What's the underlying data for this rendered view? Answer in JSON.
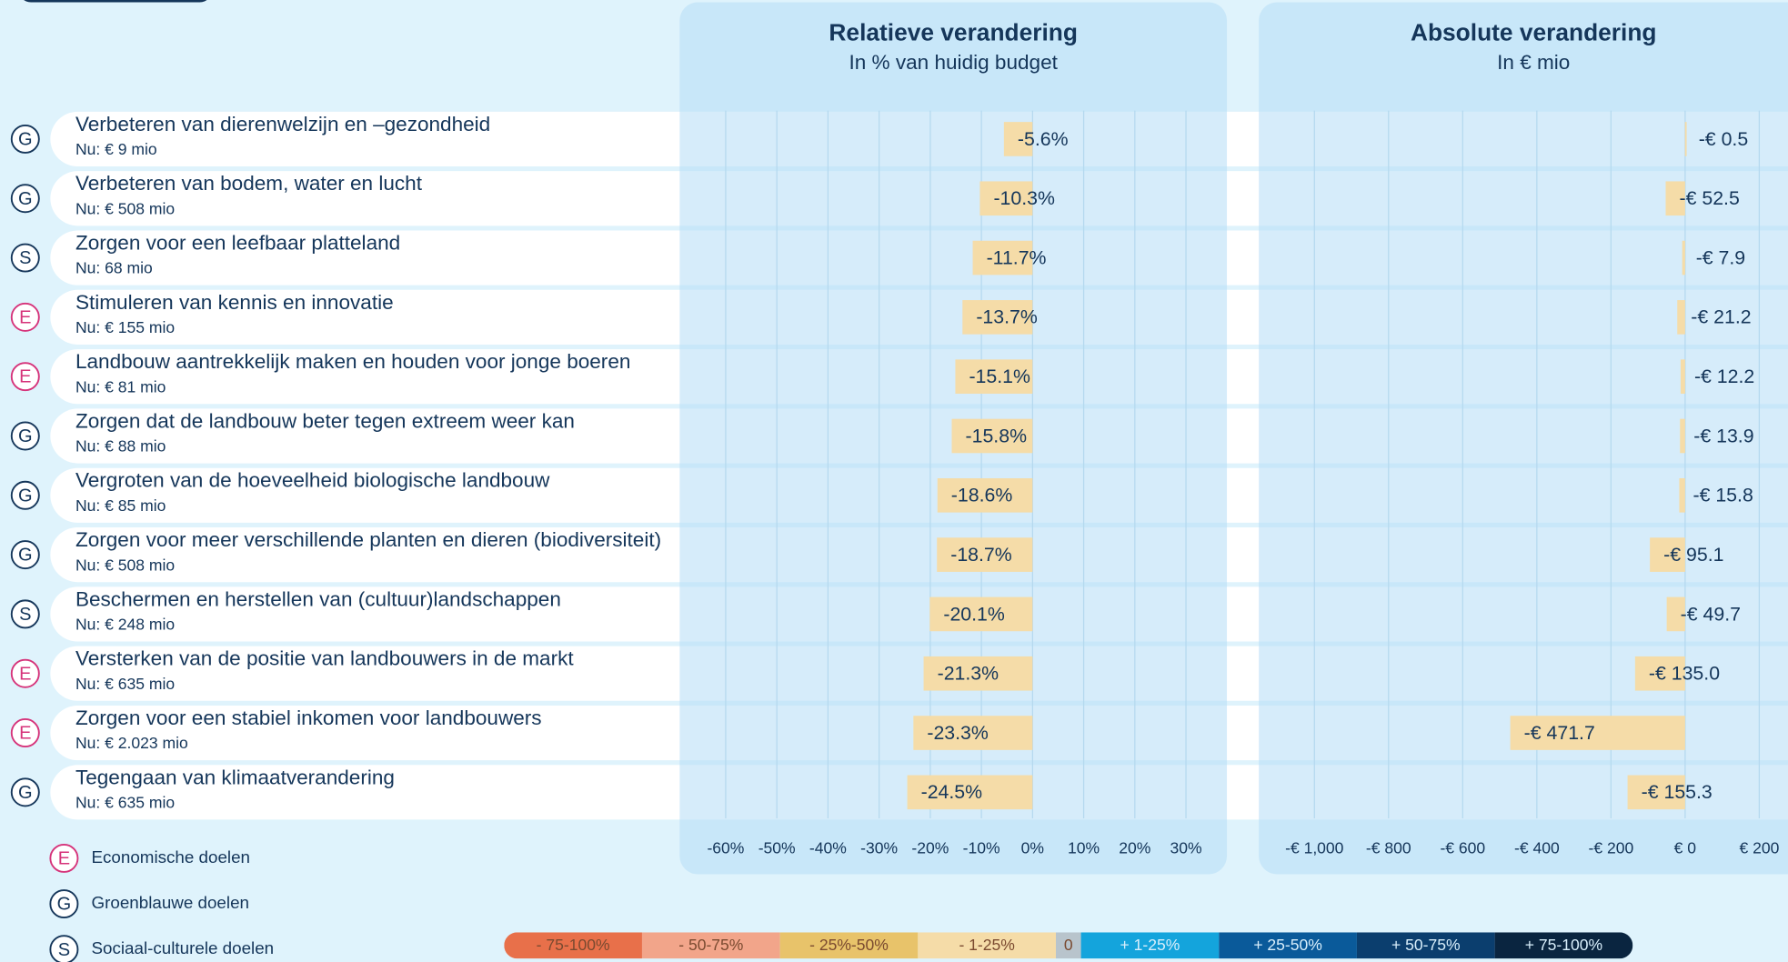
{
  "rows": [
    {
      "icon": "G",
      "label": "Verbeteren van dierenwelzijn en –gezondheid",
      "sub": "Nu: € 9 mio"
    },
    {
      "icon": "G",
      "label": "Verbeteren van bodem, water en lucht",
      "sub": "Nu: € 508 mio"
    },
    {
      "icon": "S",
      "label": "Zorgen voor een leefbaar platteland",
      "sub": "Nu: 68 mio"
    },
    {
      "icon": "E",
      "label": "Stimuleren van kennis en innovatie",
      "sub": "Nu: € 155 mio"
    },
    {
      "icon": "E",
      "label": "Landbouw aantrekkelijk maken en houden voor jonge boeren",
      "sub": "Nu: € 81 mio"
    },
    {
      "icon": "G",
      "label": "Zorgen dat de landbouw beter tegen extreem weer kan",
      "sub": "Nu: € 88 mio"
    },
    {
      "icon": "G",
      "label": "Vergroten van de hoeveelheid biologische landbouw",
      "sub": "Nu: € 85 mio"
    },
    {
      "icon": "G",
      "label": "Zorgen voor meer verschillende planten en dieren (biodiversiteit)",
      "sub": "Nu: € 508 mio"
    },
    {
      "icon": "S",
      "label": "Beschermen en herstellen van (cultuur)landschappen",
      "sub": "Nu: € 248 mio"
    },
    {
      "icon": "E",
      "label": "Versterken van de positie van landbouwers in de markt",
      "sub": "Nu: € 635 mio"
    },
    {
      "icon": "E",
      "label": "Zorgen voor een stabiel inkomen voor landbouwers",
      "sub": "Nu: € 2.023 mio"
    },
    {
      "icon": "G",
      "label": "Tegengaan van klimaatverandering",
      "sub": "Nu: € 635 mio"
    }
  ],
  "chart_data": [
    {
      "type": "bar",
      "title": "Relatieve verandering",
      "subtitle": "In % van huidig budget",
      "color": "#f5dca8",
      "values": [
        -5.6,
        -10.3,
        -11.7,
        -13.7,
        -15.1,
        -15.8,
        -18.6,
        -18.7,
        -20.1,
        -21.3,
        -23.3,
        -24.5
      ],
      "value_labels": [
        "-5.6%",
        "-10.3%",
        "-11.7%",
        "-13.7%",
        "-15.1%",
        "-15.8%",
        "-18.6%",
        "-18.7%",
        "-20.1%",
        "-21.3%",
        "-23.3%",
        "-24.5%"
      ],
      "xlim": [
        -69,
        38
      ],
      "xticks": [
        {
          "value": -60,
          "label": "-60%"
        },
        {
          "value": -50,
          "label": "-50%"
        },
        {
          "value": -40,
          "label": "-40%"
        },
        {
          "value": -30,
          "label": "-30%"
        },
        {
          "value": -20,
          "label": "-20%"
        },
        {
          "value": -10,
          "label": "-10%"
        },
        {
          "value": 0,
          "label": "0%"
        },
        {
          "value": 10,
          "label": "10%"
        },
        {
          "value": 20,
          "label": "20%"
        },
        {
          "value": 30,
          "label": "30%"
        }
      ],
      "grid": true
    },
    {
      "type": "bar",
      "title": "Absolute verandering",
      "subtitle": "In € mio",
      "color": "#f5dca8",
      "values": [
        -0.5,
        -52.5,
        -7.9,
        -21.2,
        -12.2,
        -13.9,
        -15.8,
        -95.1,
        -49.7,
        -135.0,
        -471.7,
        -155.3
      ],
      "value_labels": [
        "-€ 0.5",
        "-€ 52.5",
        "-€ 7.9",
        "-€ 21.2",
        "-€ 12.2",
        "-€ 13.9",
        "-€ 15.8",
        "-€ 95.1",
        "-€ 49.7",
        "-€ 135.0",
        "-€ 471.7",
        "-€ 155.3"
      ],
      "xlim": [
        -1150,
        277
      ],
      "xticks": [
        {
          "value": -1000,
          "label": "-€ 1,000"
        },
        {
          "value": -800,
          "label": "-€ 800"
        },
        {
          "value": -600,
          "label": "-€ 600"
        },
        {
          "value": -400,
          "label": "-€ 400"
        },
        {
          "value": -200,
          "label": "-€ 200"
        },
        {
          "value": 0,
          "label": "€ 0"
        },
        {
          "value": 200,
          "label": "€ 200"
        }
      ],
      "grid": true
    }
  ],
  "legend": [
    {
      "icon": "E",
      "label": "Economische doelen"
    },
    {
      "icon": "G",
      "label": "Groenblauwe doelen"
    },
    {
      "icon": "S",
      "label": "Sociaal-culturele doelen"
    }
  ],
  "color_scale": [
    {
      "label": "- 75-100%",
      "color": "#e8704a"
    },
    {
      "label": "- 50-75%",
      "color": "#f2a58a"
    },
    {
      "label": "- 25%-50%",
      "color": "#e8c36a"
    },
    {
      "label": "- 1-25%",
      "color": "#f5dca8"
    },
    {
      "label": "0",
      "color": "#b8c4cc"
    },
    {
      "label": "+ 1-25%",
      "color": "#14a4dc"
    },
    {
      "label": "+ 25-50%",
      "color": "#0a5a9a"
    },
    {
      "label": "+ 50-75%",
      "color": "#0b3e6e"
    },
    {
      "label": "+ 75-100%",
      "color": "#0a2540"
    }
  ]
}
